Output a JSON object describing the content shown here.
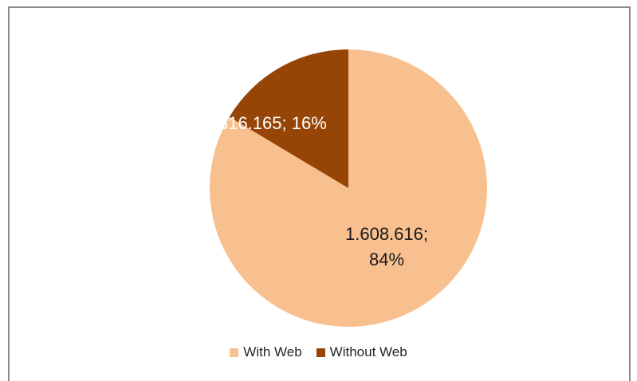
{
  "chart_data": {
    "type": "pie",
    "categories": [
      "With Web",
      "Without Web"
    ],
    "values": [
      1608616,
      316165
    ],
    "percents": [
      84,
      16
    ],
    "labels": [
      "1.608.616; 84%",
      "316.165; 16%"
    ],
    "colors": [
      "#F8C08F",
      "#974507"
    ],
    "legend": "bottom",
    "title": ""
  },
  "legend": {
    "items": [
      {
        "label": "With Web",
        "color": "#F8C08F"
      },
      {
        "label": "Without Web",
        "color": "#974507"
      }
    ]
  },
  "labels": {
    "with_web_line1": "1.608.616;",
    "with_web_line2": "84%",
    "without_web": "316.165; 16%"
  }
}
